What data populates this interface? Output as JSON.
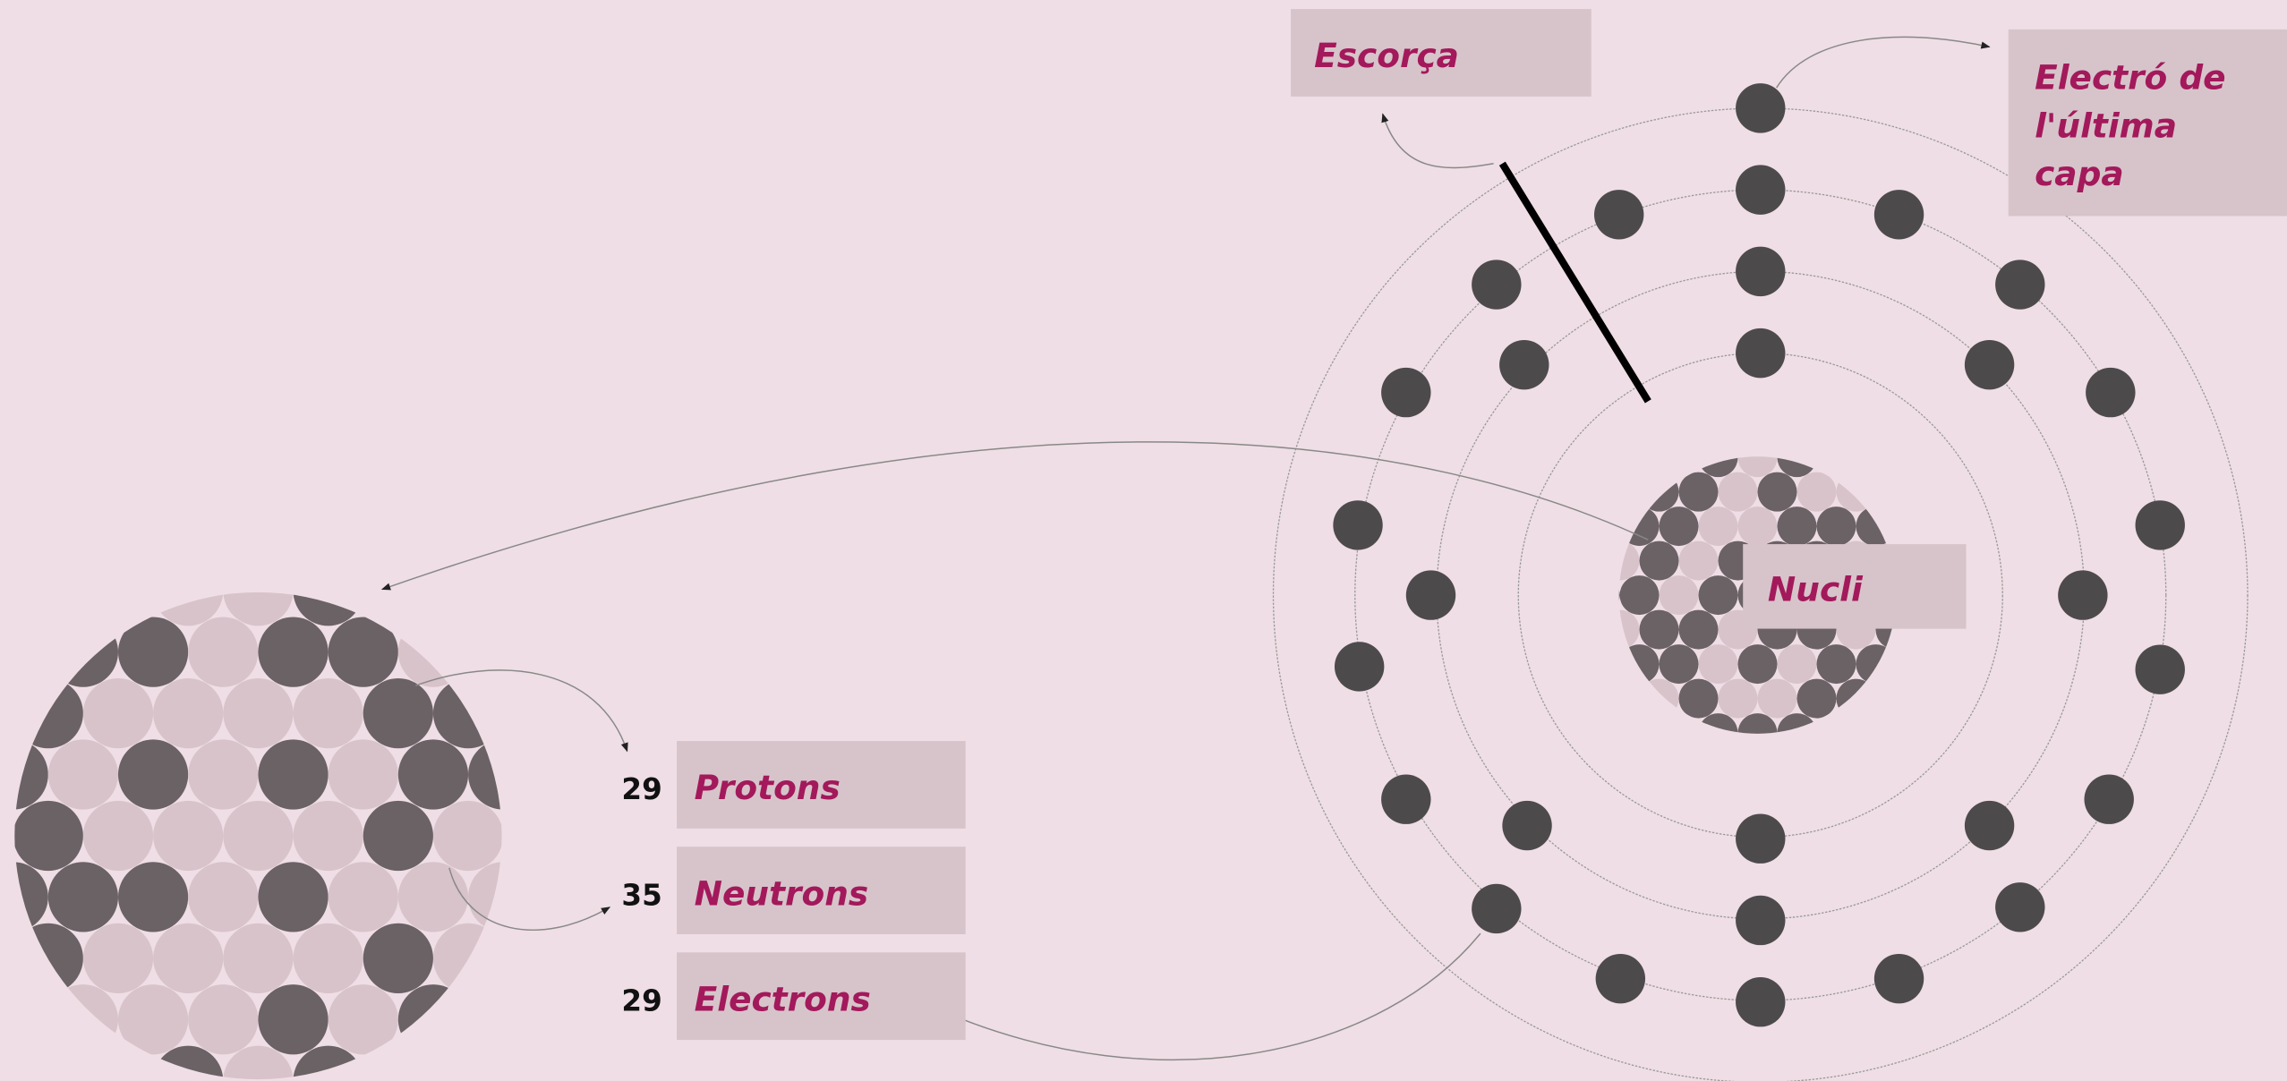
{
  "labels": {
    "shell": "Escorça",
    "last_electron": [
      "Electró de",
      "l'última",
      "capa"
    ],
    "nucleus": "Nucli"
  },
  "particles": [
    {
      "count": 29,
      "name": "Protons"
    },
    {
      "count": 35,
      "name": "Neutrons"
    },
    {
      "count": 29,
      "name": "Electrons"
    }
  ]
}
